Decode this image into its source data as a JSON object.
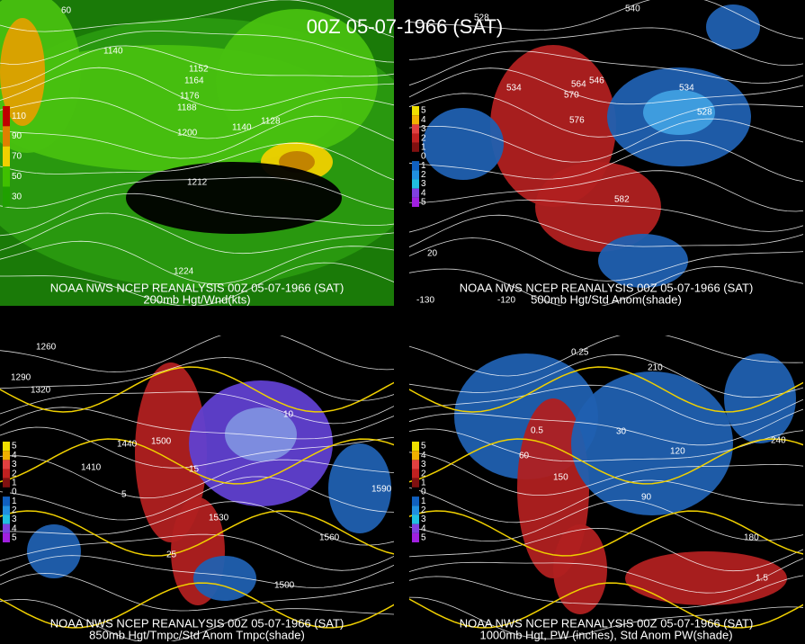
{
  "title": "00Z 05-07-1966 (SAT)",
  "panels": [
    {
      "caption": [
        "NOAA NWS NCEP REANALYSIS 00Z 05-07-1966 (SAT)",
        "200mb Hgt/Wnd(kts)"
      ],
      "legend": [
        "110",
        "90",
        "70",
        "50",
        "30"
      ],
      "labels": [
        "1140",
        "1152",
        "1164",
        "1176",
        "1188",
        "1200",
        "1212",
        "1224",
        "1140",
        "1128",
        "60"
      ]
    },
    {
      "caption": [
        "NOAA NWS NCEP REANALYSIS 00Z 05-07-1966 (SAT)",
        "500mb Hgt/Std Anom(shade)"
      ],
      "legend": [
        "5",
        "4",
        "3",
        "2",
        "1",
        "0",
        "1",
        "2",
        "3",
        "4",
        "5"
      ],
      "labels": [
        "528",
        "534",
        "540",
        "546",
        "564",
        "570",
        "576",
        "582",
        "528",
        "534",
        "20",
        "-130",
        "-120"
      ]
    },
    {
      "caption": [
        "NOAA NWS NCEP REANALYSIS 00Z 05-07-1966 (SAT)",
        "850mb Hgt/Tmpc/Std Anom Tmpc(shade)"
      ],
      "legend": [
        "5",
        "4",
        "3",
        "2",
        "1",
        "0",
        "1",
        "2",
        "3",
        "4",
        "5"
      ],
      "labels": [
        "1260",
        "1290",
        "1320",
        "1410",
        "1440",
        "1500",
        "1530",
        "1560",
        "1590",
        "1500",
        "15",
        "25",
        "5",
        "10"
      ]
    },
    {
      "caption": [
        "NOAA NWS NCEP REANALYSIS 00Z 05-07-1966 (SAT)",
        "1000mb Hgt, PW (inches), Std Anom PW(shade)"
      ],
      "legend": [
        "5",
        "4",
        "3",
        "2",
        "1",
        "0",
        "1",
        "2",
        "3",
        "4",
        "5"
      ],
      "labels": [
        "0.25",
        "0.5",
        "30",
        "60",
        "90",
        "120",
        "150",
        "180",
        "210",
        "240",
        "1.5"
      ]
    }
  ]
}
